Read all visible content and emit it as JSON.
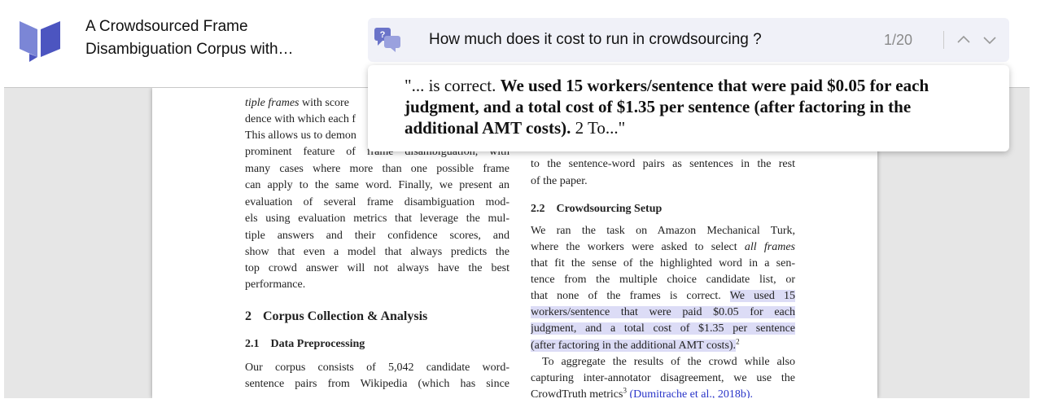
{
  "header": {
    "title_lines": [
      "A Crowdsourced Frame",
      "Disambiguation Corpus with…"
    ]
  },
  "search": {
    "query": "How much does it cost to run in crowdsourcing ?",
    "counter": "1/20"
  },
  "result": {
    "prefix": "\"... is correct. ",
    "bold": "We used 15 workers/sentence that were paid $0.05 for each judgment, and a total cost of $1.35 per sentence (after factoring in the additional AMT costs).",
    "suffix": " 2 To...\""
  },
  "paper": {
    "left": {
      "lines": [
        {
          "segs": [
            {
              "t": "tiple frames",
              "i": true
            },
            {
              "t": " with score"
            }
          ]
        },
        {
          "segs": [
            {
              "t": "dence with which each f"
            }
          ]
        },
        {
          "segs": [
            {
              "t": "This allows us to demon"
            }
          ]
        },
        {
          "justify": true,
          "segs": [
            {
              "t": "prominent feature of frame disambiguation, with"
            }
          ]
        },
        {
          "justify": true,
          "segs": [
            {
              "t": "many cases where more than one possible frame"
            }
          ]
        },
        {
          "justify": true,
          "segs": [
            {
              "t": "can apply to the same word. Finally, we present an"
            }
          ]
        },
        {
          "justify": true,
          "segs": [
            {
              "t": "evaluation of several frame disambiguation mod-"
            }
          ]
        },
        {
          "justify": true,
          "segs": [
            {
              "t": "els using evaluation metrics that leverage the mul-"
            }
          ]
        },
        {
          "justify": true,
          "segs": [
            {
              "t": "tiple answers and their confidence scores, and"
            }
          ]
        },
        {
          "justify": true,
          "segs": [
            {
              "t": "show that even a model that always predicts the"
            }
          ]
        },
        {
          "justify": true,
          "segs": [
            {
              "t": "top crowd answer will not always have the best"
            }
          ]
        },
        {
          "segs": [
            {
              "t": "performance."
            }
          ]
        },
        {
          "num": "2",
          "segs": [
            {
              "t": "Corpus Collection & Analysis",
              "b": true
            }
          ]
        },
        {
          "num": "2.1",
          "segs": [
            {
              "t": "Data Preprocessing",
              "b": true
            }
          ]
        },
        {
          "justify": true,
          "segs": [
            {
              "t": "Our corpus consists of 5,042 candidate word-"
            }
          ]
        },
        {
          "justify": true,
          "segs": [
            {
              "t": "sentence pairs from Wikipedia (which has since"
            }
          ]
        }
      ]
    },
    "right": {
      "lines": [
        {
          "justify": true,
          "segs": [
            {
              "t": "to the sentence-word pairs as sentences in the rest"
            }
          ]
        },
        {
          "segs": [
            {
              "t": "of the paper."
            }
          ]
        },
        {
          "num": "2.2",
          "segs": [
            {
              "t": "Crowdsourcing Setup",
              "b": true
            }
          ]
        },
        {
          "justify": true,
          "segs": [
            {
              "t": "We ran the task on Amazon Mechanical Turk,"
            }
          ]
        },
        {
          "justify": true,
          "segs": [
            {
              "t": "where the workers were asked to select "
            },
            {
              "t": "all frames",
              "i": true
            }
          ]
        },
        {
          "justify": true,
          "segs": [
            {
              "t": "that fit the sense of the highlighted word in a sen-"
            }
          ]
        },
        {
          "justify": true,
          "segs": [
            {
              "t": "tence from the multiple choice candidate list, or"
            }
          ]
        },
        {
          "justify": true,
          "segs": [
            {
              "t": "that none of the frames is correct. "
            },
            {
              "t": "We used 15",
              "hl": true
            }
          ]
        },
        {
          "justify": true,
          "segs": [
            {
              "t": "workers/sentence that were paid $0.05 for each",
              "hl": true
            }
          ]
        },
        {
          "justify": true,
          "segs": [
            {
              "t": "judgment, and a total cost of $1.35 per sentence",
              "hl": true
            }
          ]
        },
        {
          "segs": [
            {
              "t": "(after factoring in the additional AMT costs).",
              "hl": true
            },
            {
              "t": "2",
              "sup": true
            }
          ]
        },
        {
          "justify": true,
          "indent": true,
          "segs": [
            {
              "t": "To aggregate the results of the crowd while also"
            }
          ]
        },
        {
          "justify": true,
          "segs": [
            {
              "t": "capturing inter-annotator disagreement, we use the"
            }
          ]
        },
        {
          "segs": [
            {
              "t": "CrowdTruth metrics"
            },
            {
              "t": "3",
              "sup": true
            },
            {
              "t": " "
            },
            {
              "t": "(Dumitrache et al., 2018b).",
              "link": true
            }
          ]
        }
      ]
    }
  }
}
